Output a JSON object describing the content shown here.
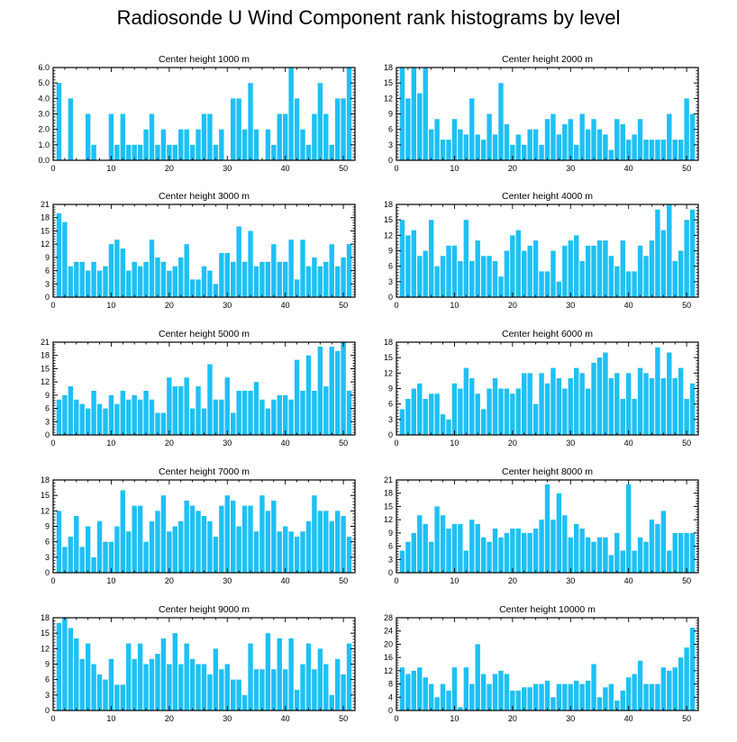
{
  "title": "Radiosonde U Wind Component rank histograms by level",
  "colors": {
    "bar": "#1ec0f4",
    "bar_edge": "#ffffff",
    "axis": "#000000"
  },
  "chart_data": [
    {
      "type": "bar",
      "title": "Center height 1000 m",
      "xlim": [
        0,
        52
      ],
      "ylim": [
        0,
        6.0
      ],
      "yticks": [
        "0.0",
        "1.0",
        "2.0",
        "3.0",
        "4.0",
        "5.0",
        "6.0"
      ],
      "xticks": [
        "0",
        "10",
        "20",
        "30",
        "40",
        "50"
      ],
      "x": [
        1,
        2,
        3,
        4,
        5,
        6,
        7,
        8,
        9,
        10,
        11,
        12,
        13,
        14,
        15,
        16,
        17,
        18,
        19,
        20,
        21,
        22,
        23,
        24,
        25,
        26,
        27,
        28,
        29,
        30,
        31,
        32,
        33,
        34,
        35,
        36,
        37,
        38,
        39,
        40,
        41,
        42,
        43,
        44,
        45,
        46,
        47,
        48,
        49,
        50,
        51
      ],
      "values": [
        5,
        0,
        4,
        0,
        0,
        3,
        1,
        0,
        0,
        3,
        1,
        3,
        1,
        1,
        1,
        2,
        3,
        1,
        2,
        1,
        1,
        2,
        2,
        1,
        2,
        3,
        3,
        1,
        2,
        0,
        4,
        4,
        2,
        5,
        2,
        0,
        2,
        1,
        3,
        3,
        6,
        4,
        2,
        1,
        3,
        5,
        3,
        1,
        4,
        4,
        6
      ]
    },
    {
      "type": "bar",
      "title": "Center height 2000 m",
      "xlim": [
        0,
        52
      ],
      "ylim": [
        0,
        18
      ],
      "yticks": [
        "0",
        "3",
        "6",
        "9",
        "12",
        "15",
        "18"
      ],
      "xticks": [
        "0",
        "10",
        "20",
        "30",
        "40",
        "50"
      ],
      "x": [
        1,
        2,
        3,
        4,
        5,
        6,
        7,
        8,
        9,
        10,
        11,
        12,
        13,
        14,
        15,
        16,
        17,
        18,
        19,
        20,
        21,
        22,
        23,
        24,
        25,
        26,
        27,
        28,
        29,
        30,
        31,
        32,
        33,
        34,
        35,
        36,
        37,
        38,
        39,
        40,
        41,
        42,
        43,
        44,
        45,
        46,
        47,
        48,
        49,
        50,
        51
      ],
      "values": [
        18,
        12,
        18,
        13,
        18,
        6,
        8,
        4,
        4,
        8,
        6,
        5,
        12,
        5,
        4,
        9,
        5,
        15,
        7,
        3,
        5,
        3,
        6,
        6,
        3,
        8,
        9,
        5,
        7,
        8,
        3,
        9,
        6,
        8,
        6,
        5,
        2,
        8,
        7,
        4,
        5,
        8,
        4,
        4,
        4,
        4,
        9,
        4,
        4,
        12,
        9
      ]
    },
    {
      "type": "bar",
      "title": "Center height 3000 m",
      "xlim": [
        0,
        52
      ],
      "ylim": [
        0,
        21
      ],
      "yticks": [
        "0",
        "3",
        "6",
        "9",
        "12",
        "15",
        "18",
        "21"
      ],
      "xticks": [
        "0",
        "10",
        "20",
        "30",
        "40",
        "50"
      ],
      "x": [
        1,
        2,
        3,
        4,
        5,
        6,
        7,
        8,
        9,
        10,
        11,
        12,
        13,
        14,
        15,
        16,
        17,
        18,
        19,
        20,
        21,
        22,
        23,
        24,
        25,
        26,
        27,
        28,
        29,
        30,
        31,
        32,
        33,
        34,
        35,
        36,
        37,
        38,
        39,
        40,
        41,
        42,
        43,
        44,
        45,
        46,
        47,
        48,
        49,
        50,
        51
      ],
      "values": [
        19,
        17,
        7,
        8,
        8,
        6,
        8,
        6,
        7,
        12,
        13,
        11,
        6,
        8,
        7,
        8,
        13,
        9,
        8,
        6,
        7,
        9,
        12,
        4,
        4,
        7,
        6,
        3,
        10,
        10,
        8,
        16,
        8,
        15,
        7,
        8,
        8,
        12,
        8,
        8,
        13,
        4,
        13,
        7,
        9,
        7,
        8,
        12,
        7,
        9,
        12
      ]
    },
    {
      "type": "bar",
      "title": "Center height 4000 m",
      "xlim": [
        0,
        52
      ],
      "ylim": [
        0,
        18
      ],
      "yticks": [
        "0",
        "3",
        "6",
        "9",
        "12",
        "15",
        "18"
      ],
      "xticks": [
        "0",
        "10",
        "20",
        "30",
        "40",
        "50"
      ],
      "x": [
        1,
        2,
        3,
        4,
        5,
        6,
        7,
        8,
        9,
        10,
        11,
        12,
        13,
        14,
        15,
        16,
        17,
        18,
        19,
        20,
        21,
        22,
        23,
        24,
        25,
        26,
        27,
        28,
        29,
        30,
        31,
        32,
        33,
        34,
        35,
        36,
        37,
        38,
        39,
        40,
        41,
        42,
        43,
        44,
        45,
        46,
        47,
        48,
        49,
        50,
        51
      ],
      "values": [
        15,
        12,
        13,
        8,
        9,
        15,
        6,
        8,
        10,
        10,
        7,
        15,
        7,
        11,
        8,
        8,
        7,
        4,
        9,
        12,
        13,
        9,
        10,
        11,
        5,
        5,
        9,
        3,
        10,
        11,
        12,
        7,
        10,
        10,
        11,
        11,
        8,
        6,
        11,
        5,
        5,
        10,
        8,
        11,
        17,
        13,
        18,
        7,
        9,
        15,
        17
      ]
    },
    {
      "type": "bar",
      "title": "Center height 5000 m",
      "xlim": [
        0,
        52
      ],
      "ylim": [
        0,
        21
      ],
      "yticks": [
        "0",
        "3",
        "6",
        "9",
        "12",
        "15",
        "18",
        "21"
      ],
      "xticks": [
        "0",
        "10",
        "20",
        "30",
        "40",
        "50"
      ],
      "x": [
        1,
        2,
        3,
        4,
        5,
        6,
        7,
        8,
        9,
        10,
        11,
        12,
        13,
        14,
        15,
        16,
        17,
        18,
        19,
        20,
        21,
        22,
        23,
        24,
        25,
        26,
        27,
        28,
        29,
        30,
        31,
        32,
        33,
        34,
        35,
        36,
        37,
        38,
        39,
        40,
        41,
        42,
        43,
        44,
        45,
        46,
        47,
        48,
        49,
        50,
        51
      ],
      "values": [
        8,
        9,
        11,
        8,
        7,
        6,
        10,
        7,
        6,
        9,
        7,
        10,
        8,
        9,
        8,
        10,
        8,
        5,
        5,
        13,
        11,
        11,
        13,
        6,
        11,
        6,
        16,
        8,
        8,
        13,
        5,
        10,
        10,
        10,
        12,
        8,
        6,
        8,
        9,
        9,
        8,
        17,
        10,
        18,
        10,
        20,
        11,
        20,
        19,
        21,
        10
      ]
    },
    {
      "type": "bar",
      "title": "Center height 6000 m",
      "xlim": [
        0,
        52
      ],
      "ylim": [
        0,
        18
      ],
      "yticks": [
        "0",
        "3",
        "6",
        "9",
        "12",
        "15",
        "18"
      ],
      "xticks": [
        "0",
        "10",
        "20",
        "30",
        "40",
        "50"
      ],
      "x": [
        1,
        2,
        3,
        4,
        5,
        6,
        7,
        8,
        9,
        10,
        11,
        12,
        13,
        14,
        15,
        16,
        17,
        18,
        19,
        20,
        21,
        22,
        23,
        24,
        25,
        26,
        27,
        28,
        29,
        30,
        31,
        32,
        33,
        34,
        35,
        36,
        37,
        38,
        39,
        40,
        41,
        42,
        43,
        44,
        45,
        46,
        47,
        48,
        49,
        50,
        51
      ],
      "values": [
        5,
        7,
        9,
        10,
        7,
        8,
        8,
        4,
        3,
        10,
        9,
        13,
        11,
        8,
        5,
        9,
        11,
        9,
        9,
        8,
        9,
        12,
        12,
        6,
        12,
        10,
        13,
        11,
        9,
        11,
        13,
        12,
        9,
        14,
        15,
        16,
        11,
        12,
        7,
        12,
        7,
        13,
        12,
        11,
        17,
        11,
        16,
        11,
        13,
        7,
        10
      ]
    },
    {
      "type": "bar",
      "title": "Center height 7000 m",
      "xlim": [
        0,
        52
      ],
      "ylim": [
        0,
        18
      ],
      "yticks": [
        "0",
        "3",
        "6",
        "9",
        "12",
        "15",
        "18"
      ],
      "xticks": [
        "0",
        "10",
        "20",
        "30",
        "40",
        "50"
      ],
      "x": [
        1,
        2,
        3,
        4,
        5,
        6,
        7,
        8,
        9,
        10,
        11,
        12,
        13,
        14,
        15,
        16,
        17,
        18,
        19,
        20,
        21,
        22,
        23,
        24,
        25,
        26,
        27,
        28,
        29,
        30,
        31,
        32,
        33,
        34,
        35,
        36,
        37,
        38,
        39,
        40,
        41,
        42,
        43,
        44,
        45,
        46,
        47,
        48,
        49,
        50,
        51
      ],
      "values": [
        12,
        5,
        7,
        11,
        5,
        9,
        3,
        10,
        6,
        6,
        9,
        16,
        8,
        13,
        13,
        6,
        10,
        12,
        15,
        8,
        9,
        10,
        14,
        13,
        12,
        11,
        10,
        7,
        13,
        15,
        14,
        9,
        13,
        13,
        8,
        15,
        12,
        14,
        8,
        9,
        8,
        7,
        8,
        10,
        15,
        12,
        12,
        10,
        12,
        11,
        7
      ]
    },
    {
      "type": "bar",
      "title": "Center height 8000 m",
      "xlim": [
        0,
        52
      ],
      "ylim": [
        0,
        21
      ],
      "yticks": [
        "0",
        "3",
        "6",
        "9",
        "12",
        "15",
        "18",
        "21"
      ],
      "xticks": [
        "0",
        "10",
        "20",
        "30",
        "40",
        "50"
      ],
      "x": [
        1,
        2,
        3,
        4,
        5,
        6,
        7,
        8,
        9,
        10,
        11,
        12,
        13,
        14,
        15,
        16,
        17,
        18,
        19,
        20,
        21,
        22,
        23,
        24,
        25,
        26,
        27,
        28,
        29,
        30,
        31,
        32,
        33,
        34,
        35,
        36,
        37,
        38,
        39,
        40,
        41,
        42,
        43,
        44,
        45,
        46,
        47,
        48,
        49,
        50,
        51
      ],
      "values": [
        5,
        7,
        9,
        13,
        11,
        7,
        15,
        13,
        10,
        11,
        11,
        5,
        12,
        11,
        8,
        7,
        10,
        8,
        9,
        10,
        10,
        9,
        9,
        10,
        12,
        20,
        12,
        18,
        13,
        8,
        11,
        10,
        8,
        7,
        8,
        8,
        4,
        9,
        5,
        20,
        5,
        8,
        7,
        12,
        11,
        14,
        5,
        9,
        9,
        9,
        9
      ]
    },
    {
      "type": "bar",
      "title": "Center height 9000 m",
      "xlim": [
        0,
        52
      ],
      "ylim": [
        0,
        18
      ],
      "yticks": [
        "0",
        "3",
        "6",
        "9",
        "12",
        "15",
        "18"
      ],
      "xticks": [
        "0",
        "10",
        "20",
        "30",
        "40",
        "50"
      ],
      "x": [
        1,
        2,
        3,
        4,
        5,
        6,
        7,
        8,
        9,
        10,
        11,
        12,
        13,
        14,
        15,
        16,
        17,
        18,
        19,
        20,
        21,
        22,
        23,
        24,
        25,
        26,
        27,
        28,
        29,
        30,
        31,
        32,
        33,
        34,
        35,
        36,
        37,
        38,
        39,
        40,
        41,
        42,
        43,
        44,
        45,
        46,
        47,
        48,
        49,
        50,
        51
      ],
      "values": [
        17,
        18,
        16,
        14,
        10,
        13,
        9,
        7,
        6,
        10,
        5,
        5,
        13,
        10,
        13,
        9,
        10,
        11,
        14,
        9,
        15,
        9,
        13,
        10,
        9,
        9,
        7,
        12,
        8,
        9,
        6,
        6,
        3,
        13,
        8,
        8,
        15,
        8,
        14,
        8,
        14,
        4,
        9,
        13,
        8,
        12,
        9,
        3,
        10,
        7,
        13
      ]
    },
    {
      "type": "bar",
      "title": "Center height 10000 m",
      "xlim": [
        0,
        52
      ],
      "ylim": [
        0,
        28
      ],
      "yticks": [
        "0",
        "4",
        "8",
        "12",
        "16",
        "20",
        "24",
        "28"
      ],
      "xticks": [
        "0",
        "10",
        "20",
        "30",
        "40",
        "50"
      ],
      "x": [
        1,
        2,
        3,
        4,
        5,
        6,
        7,
        8,
        9,
        10,
        11,
        12,
        13,
        14,
        15,
        16,
        17,
        18,
        19,
        20,
        21,
        22,
        23,
        24,
        25,
        26,
        27,
        28,
        29,
        30,
        31,
        32,
        33,
        34,
        35,
        36,
        37,
        38,
        39,
        40,
        41,
        42,
        43,
        44,
        45,
        46,
        47,
        48,
        49,
        50,
        51
      ],
      "values": [
        13,
        11,
        12,
        13,
        10,
        8,
        4,
        8,
        6,
        13,
        1,
        13,
        8,
        20,
        11,
        8,
        11,
        12,
        11,
        6,
        6,
        7,
        7,
        8,
        8,
        9,
        4,
        8,
        8,
        8,
        9,
        8,
        9,
        14,
        4,
        7,
        8,
        3,
        6,
        10,
        11,
        15,
        8,
        8,
        8,
        13,
        12,
        13,
        16,
        19,
        25
      ]
    }
  ]
}
